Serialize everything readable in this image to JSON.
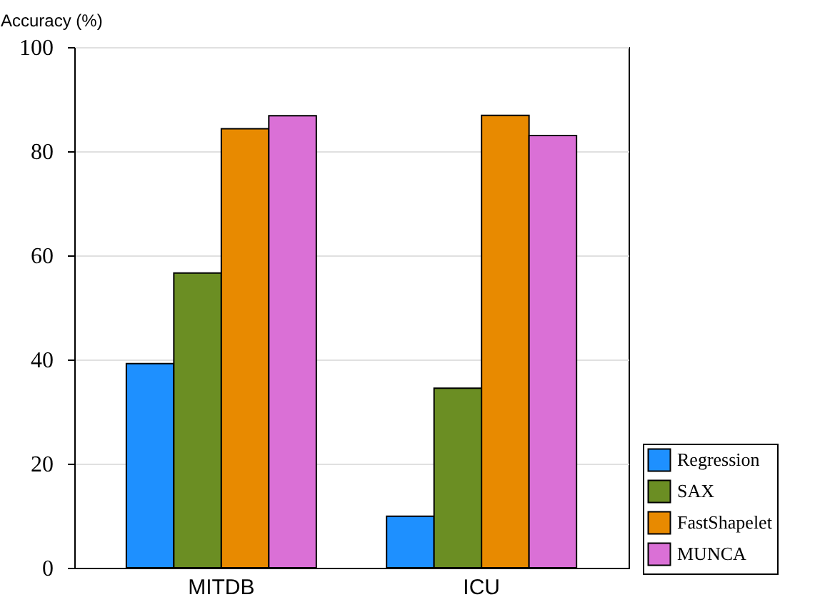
{
  "chart_data": {
    "type": "bar",
    "ylabel": "Accuracy (%)",
    "categories": [
      "MITDB",
      "ICU"
    ],
    "series": [
      {
        "name": "Regression",
        "color": "#1e90ff",
        "values": [
          39.2,
          9.9
        ]
      },
      {
        "name": "SAX",
        "color": "#6b8e23",
        "values": [
          56.6,
          34.5
        ]
      },
      {
        "name": "FastShapelet",
        "color": "#e88a00",
        "values": [
          84.3,
          86.9
        ]
      },
      {
        "name": "MUNCA",
        "color": "#da70d6",
        "values": [
          86.8,
          83.0
        ]
      }
    ],
    "ylim": [
      0,
      100
    ],
    "yticks": [
      0,
      20,
      40,
      60,
      80,
      100
    ],
    "grid": "y",
    "legend": "bottom right"
  }
}
